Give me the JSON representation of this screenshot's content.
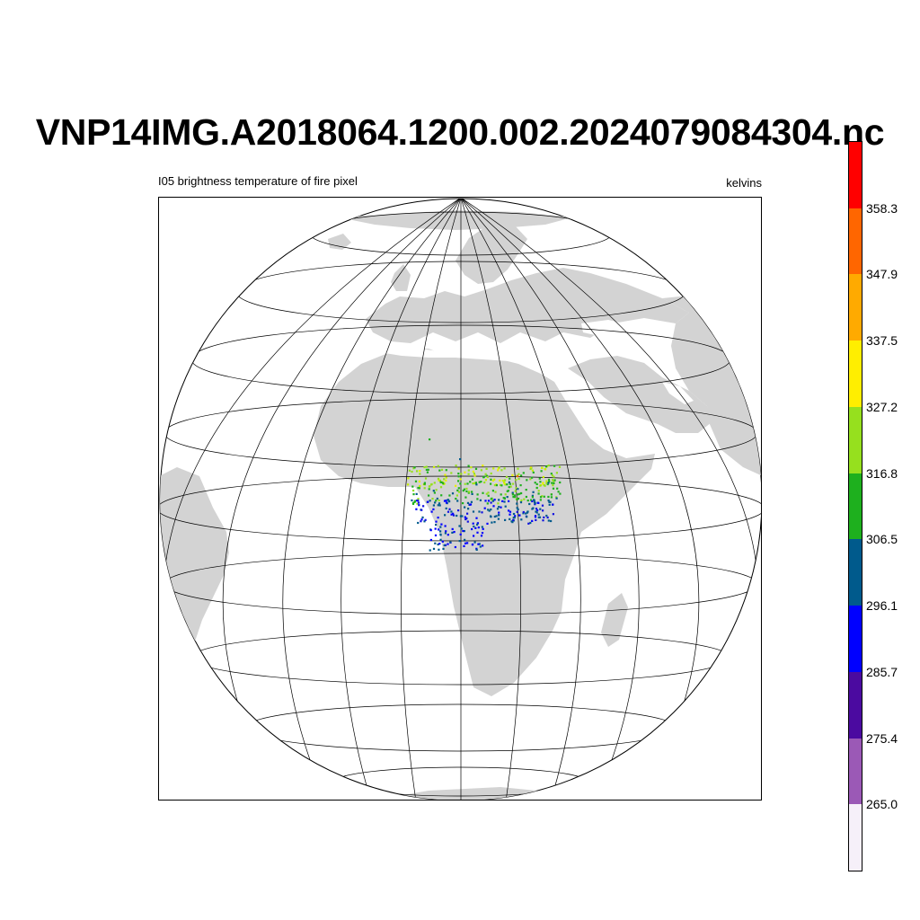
{
  "title": "VNP14IMG.A2018064.1200.002.2024079084304.nc",
  "subtitle_left": "I05 brightness temperature of fire pixel",
  "subtitle_right": "kelvins",
  "map": {
    "projection": "orthographic",
    "graticule": true,
    "land_color": "#d3d3d3",
    "ocean_color": "#ffffff",
    "fire_region": "Sahel / Central Africa"
  },
  "colorbar": {
    "colors": [
      "#f6f0f9",
      "#9b59b6",
      "#4b0aa0",
      "#0000ff",
      "#005a8c",
      "#1eb01e",
      "#96e01e",
      "#ffee00",
      "#ffaa00",
      "#ff6600",
      "#ff0000"
    ],
    "labels": [
      "265.0",
      "275.4",
      "285.7",
      "296.1",
      "306.5",
      "316.8",
      "327.2",
      "337.5",
      "347.9",
      "358.3"
    ]
  }
}
